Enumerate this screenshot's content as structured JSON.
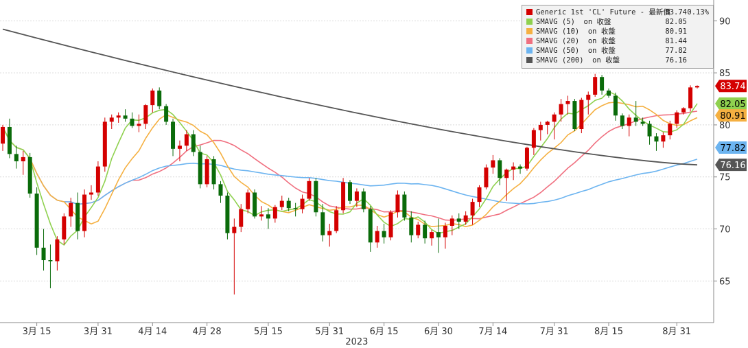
{
  "chart_data": {
    "type": "candlestick",
    "ylim": [
      61,
      92
    ],
    "y_ticks": [
      65,
      70,
      75,
      80,
      85,
      90
    ],
    "x_ticks": [
      "3月 15",
      "3月 31",
      "4月 14",
      "4月 28",
      "5月 15",
      "5月 31",
      "6月 15",
      "6月 30",
      "7月 14",
      "7月 31",
      "8月 15",
      "8月 31"
    ],
    "x_year_label": "2023",
    "legend": [
      {
        "name": "Generic 1st 'CL' Future - 最新價",
        "value": "83.74",
        "change": "0.13%",
        "color": "#d40000"
      },
      {
        "name": "SMAVG (5)  on 收盤",
        "value": "82.05",
        "color": "#8fd14f"
      },
      {
        "name": "SMAVG (10)  on 收盤",
        "value": "80.91",
        "color": "#f5b041"
      },
      {
        "name": "SMAVG (20)  on 收盤",
        "value": "81.44",
        "color": "#f07080"
      },
      {
        "name": "SMAVG (50)  on 收盤",
        "value": "77.82",
        "color": "#6cb4f0"
      },
      {
        "name": "SMAVG (200)  on 收盤",
        "value": "76.16",
        "color": "#555555"
      }
    ],
    "price_tags": [
      {
        "label": "83.74",
        "value": 83.74,
        "bg": "#d40000",
        "fg": "#ffffff"
      },
      {
        "label": "82.05",
        "value": 82.05,
        "bg": "#8fd14f",
        "fg": "#000000"
      },
      {
        "label": "80.91",
        "value": 80.91,
        "bg": "#f5b041",
        "fg": "#000000"
      },
      {
        "label": "77.82",
        "value": 77.82,
        "bg": "#6cb4f0",
        "fg": "#000000"
      },
      {
        "label": "76.16",
        "value": 76.16,
        "bg": "#555555",
        "fg": "#ffffff"
      }
    ],
    "candles": [
      [
        78.2,
        80.0,
        77.5,
        79.8
      ],
      [
        79.8,
        80.6,
        76.8,
        77.2
      ],
      [
        77.2,
        78.0,
        75.8,
        76.5
      ],
      [
        76.5,
        77.5,
        75.2,
        76.9
      ],
      [
        76.9,
        77.3,
        73.0,
        73.4
      ],
      [
        73.4,
        74.0,
        67.5,
        68.2
      ],
      [
        68.2,
        70.0,
        66.0,
        67.0
      ],
      [
        67.0,
        68.5,
        64.3,
        66.9
      ],
      [
        66.9,
        69.3,
        66.0,
        69.0
      ],
      [
        69.0,
        71.5,
        68.5,
        71.2
      ],
      [
        71.2,
        73.0,
        70.2,
        72.5
      ],
      [
        72.5,
        73.5,
        69.0,
        69.8
      ],
      [
        69.8,
        73.8,
        69.2,
        73.3
      ],
      [
        73.3,
        74.2,
        72.8,
        73.5
      ],
      [
        73.5,
        76.5,
        73.2,
        76.0
      ],
      [
        76.0,
        80.7,
        75.5,
        80.3
      ],
      [
        80.3,
        81.0,
        79.6,
        80.7
      ],
      [
        80.7,
        81.2,
        80.2,
        80.9
      ],
      [
        80.9,
        81.5,
        80.3,
        80.6
      ],
      [
        80.6,
        81.2,
        79.7,
        79.9
      ],
      [
        79.9,
        81.0,
        79.3,
        80.1
      ],
      [
        80.1,
        82.0,
        79.6,
        81.9
      ],
      [
        81.9,
        83.5,
        81.2,
        83.3
      ],
      [
        83.3,
        83.6,
        81.5,
        81.8
      ],
      [
        81.8,
        82.0,
        80.0,
        80.3
      ],
      [
        80.3,
        80.6,
        77.0,
        77.7
      ],
      [
        77.7,
        78.5,
        76.5,
        78.0
      ],
      [
        78.0,
        79.5,
        77.5,
        79.1
      ],
      [
        79.1,
        79.5,
        77.0,
        77.4
      ],
      [
        77.4,
        78.0,
        73.9,
        74.3
      ],
      [
        74.3,
        77.0,
        74.0,
        76.7
      ],
      [
        76.7,
        77.0,
        73.8,
        74.3
      ],
      [
        74.3,
        74.6,
        72.5,
        73.2
      ],
      [
        73.2,
        73.5,
        69.0,
        69.6
      ],
      [
        69.6,
        71.0,
        63.7,
        70.2
      ],
      [
        70.2,
        72.4,
        69.7,
        71.9
      ],
      [
        71.9,
        73.8,
        71.5,
        73.5
      ],
      [
        73.5,
        73.8,
        71.0,
        71.2
      ],
      [
        71.2,
        72.2,
        70.8,
        71.4
      ],
      [
        71.4,
        72.0,
        70.0,
        71.0
      ],
      [
        71.0,
        72.3,
        70.6,
        72.1
      ],
      [
        72.1,
        73.2,
        71.8,
        72.7
      ],
      [
        72.7,
        73.0,
        71.7,
        72.0
      ],
      [
        72.0,
        72.5,
        71.2,
        71.9
      ],
      [
        71.9,
        73.3,
        71.5,
        72.9
      ],
      [
        72.9,
        74.9,
        72.7,
        74.6
      ],
      [
        74.6,
        74.9,
        71.2,
        71.6
      ],
      [
        71.6,
        72.4,
        68.8,
        69.4
      ],
      [
        69.4,
        70.5,
        68.3,
        69.8
      ],
      [
        69.8,
        72.2,
        69.6,
        71.8
      ],
      [
        71.8,
        74.9,
        71.5,
        74.5
      ],
      [
        74.5,
        74.7,
        72.4,
        72.7
      ],
      [
        72.7,
        73.9,
        72.1,
        73.6
      ],
      [
        73.6,
        73.9,
        71.6,
        71.9
      ],
      [
        71.9,
        72.2,
        67.8,
        68.7
      ],
      [
        68.7,
        70.3,
        68.2,
        69.8
      ],
      [
        69.8,
        70.5,
        68.6,
        69.2
      ],
      [
        69.2,
        71.8,
        68.9,
        71.6
      ],
      [
        71.6,
        73.7,
        71.1,
        73.3
      ],
      [
        73.3,
        73.6,
        70.8,
        71.1
      ],
      [
        71.1,
        71.7,
        68.7,
        69.4
      ],
      [
        69.4,
        70.7,
        69.1,
        70.4
      ],
      [
        70.4,
        70.8,
        68.6,
        69.1
      ],
      [
        69.1,
        69.9,
        68.4,
        69.7
      ],
      [
        69.7,
        71.0,
        67.7,
        69.2
      ],
      [
        69.2,
        70.6,
        68.1,
        70.3
      ],
      [
        70.3,
        71.3,
        69.4,
        71.0
      ],
      [
        71.0,
        71.5,
        70.0,
        70.7
      ],
      [
        70.7,
        71.7,
        70.4,
        71.3
      ],
      [
        71.3,
        72.9,
        70.4,
        72.6
      ],
      [
        72.6,
        74.2,
        72.1,
        74.0
      ],
      [
        74.0,
        76.2,
        73.8,
        75.9
      ],
      [
        75.9,
        77.1,
        75.3,
        76.6
      ],
      [
        76.6,
        76.8,
        74.2,
        74.9
      ],
      [
        74.9,
        75.8,
        72.7,
        75.7
      ],
      [
        75.7,
        76.4,
        74.7,
        76.0
      ],
      [
        76.0,
        76.2,
        75.3,
        75.8
      ],
      [
        75.8,
        77.9,
        75.6,
        77.8
      ],
      [
        77.8,
        79.7,
        77.1,
        79.5
      ],
      [
        79.5,
        80.3,
        78.5,
        80.0
      ],
      [
        80.0,
        80.4,
        79.1,
        80.3
      ],
      [
        80.3,
        81.2,
        78.6,
        81.0
      ],
      [
        81.0,
        82.5,
        80.3,
        82.0
      ],
      [
        82.0,
        82.8,
        81.0,
        82.3
      ],
      [
        82.3,
        82.5,
        79.4,
        79.6
      ],
      [
        79.6,
        82.6,
        79.2,
        82.4
      ],
      [
        82.4,
        83.2,
        81.0,
        82.9
      ],
      [
        82.9,
        84.9,
        82.7,
        84.6
      ],
      [
        84.6,
        84.8,
        82.9,
        83.3
      ],
      [
        83.3,
        83.5,
        82.6,
        82.8
      ],
      [
        82.8,
        83.1,
        80.4,
        80.9
      ],
      [
        80.9,
        81.1,
        79.6,
        79.9
      ],
      [
        79.9,
        81.0,
        78.9,
        80.7
      ],
      [
        80.7,
        82.3,
        79.9,
        80.3
      ],
      [
        80.3,
        80.7,
        79.9,
        80.1
      ],
      [
        80.1,
        80.4,
        78.1,
        78.9
      ],
      [
        78.9,
        79.2,
        77.5,
        78.4
      ],
      [
        78.4,
        79.3,
        77.8,
        79.0
      ],
      [
        79.0,
        80.4,
        78.6,
        80.1
      ],
      [
        80.1,
        81.4,
        79.7,
        81.2
      ],
      [
        81.2,
        81.7,
        81.0,
        81.6
      ],
      [
        81.6,
        83.8,
        81.3,
        83.6
      ],
      [
        83.6,
        83.8,
        83.5,
        83.74
      ]
    ]
  }
}
